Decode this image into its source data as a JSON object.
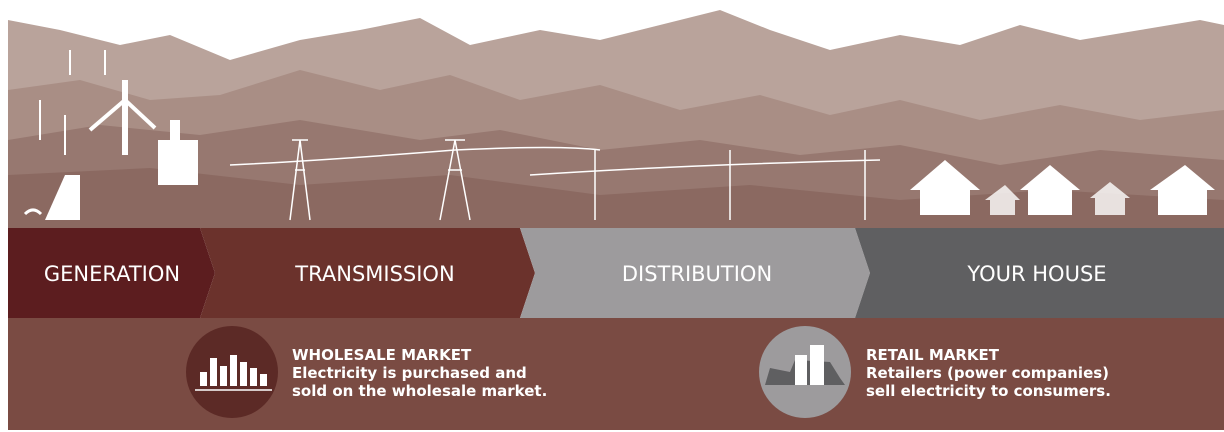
{
  "stages": [
    {
      "label": "GENERATION"
    },
    {
      "label": "TRANSMISSION"
    },
    {
      "label": "DISTRIBUTION"
    },
    {
      "label": "YOUR HOUSE"
    }
  ],
  "markets": [
    {
      "title": "WHOLESALE MARKET",
      "lines": [
        "Electricity is purchased and",
        "sold on the wholesale market."
      ]
    },
    {
      "title": "RETAIL MARKET",
      "lines": [
        "Retailers (power companies)",
        "sell electricity to consumers."
      ]
    }
  ]
}
